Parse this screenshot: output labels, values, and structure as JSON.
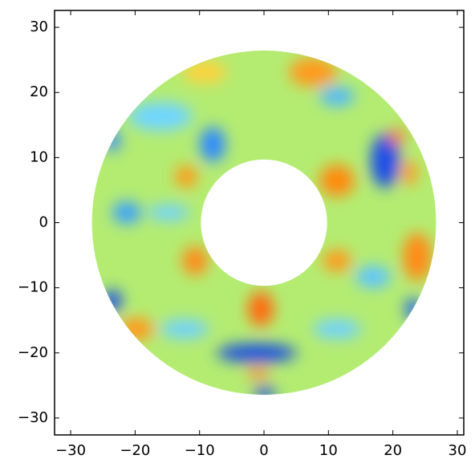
{
  "chart_data": {
    "type": "annulus-map",
    "xlim": [
      -32.5,
      31
    ],
    "ylim": [
      -32.6,
      32.6
    ],
    "xticks": [
      {
        "value": -30,
        "label": "−30"
      },
      {
        "value": -20,
        "label": "−20"
      },
      {
        "value": -10,
        "label": "−10"
      },
      0,
      10,
      20,
      30
    ],
    "yticks": [
      {
        "value": -30,
        "label": "−30"
      },
      {
        "value": -20,
        "label": "−20"
      },
      {
        "value": -10,
        "label": "−10"
      },
      0,
      10,
      20,
      30
    ],
    "center": [
      0,
      0
    ],
    "inner_radius": 9.8,
    "outer_radius": 26.7,
    "grid": false
  }
}
